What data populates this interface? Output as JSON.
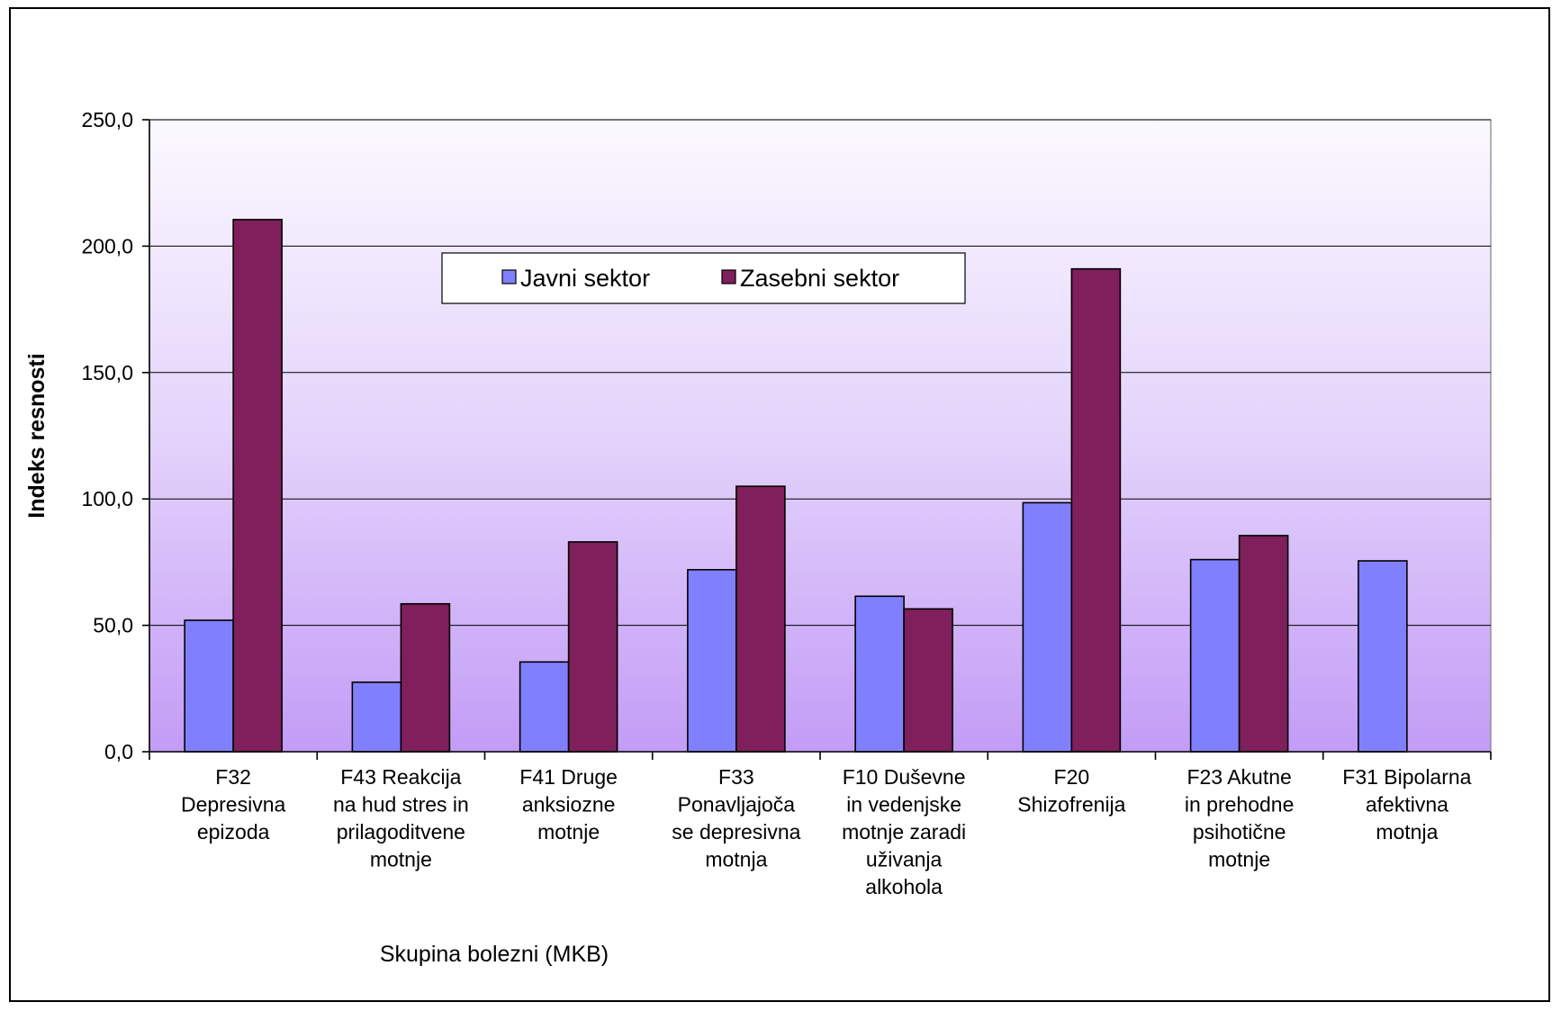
{
  "chart_data": {
    "type": "bar",
    "title": "",
    "xlabel": "Skupina bolezni (MKB)",
    "ylabel": "Indeks resnosti",
    "ylim": [
      0,
      250
    ],
    "yticks": [
      0,
      50,
      100,
      150,
      200,
      250
    ],
    "ytick_labels": [
      "0,0",
      "50,0",
      "100,0",
      "150,0",
      "200,0",
      "250,0"
    ],
    "grid": true,
    "legend_position": "upper-center",
    "categories": [
      [
        "F32",
        "Depresivna",
        "epizoda"
      ],
      [
        "F43  Reakcija",
        "na hud stres in",
        "prilagoditvene",
        "motnje"
      ],
      [
        "F41  Druge",
        "anksiozne",
        "motnje"
      ],
      [
        "F33",
        "Ponavljajoča",
        "se depresivna",
        "motnja"
      ],
      [
        "F10  Duševne",
        "in vedenjske",
        "motnje zaradi",
        "uživanja",
        "alkohola"
      ],
      [
        "F20",
        "Shizofrenija"
      ],
      [
        "F23  Akutne",
        "in prehodne",
        "psihotične",
        "motnje"
      ],
      [
        "F31  Bipolarna",
        "afektivna",
        "motnja"
      ]
    ],
    "series": [
      {
        "name": "Javni sektor",
        "color": "#8080ff",
        "values": [
          52,
          27.5,
          35.5,
          72,
          61.5,
          98.5,
          76,
          75.5
        ]
      },
      {
        "name": "Zasebni sektor",
        "color": "#7f1f5b",
        "values": [
          210.5,
          58.5,
          83,
          105,
          56.5,
          191,
          85.5,
          null
        ]
      }
    ]
  }
}
